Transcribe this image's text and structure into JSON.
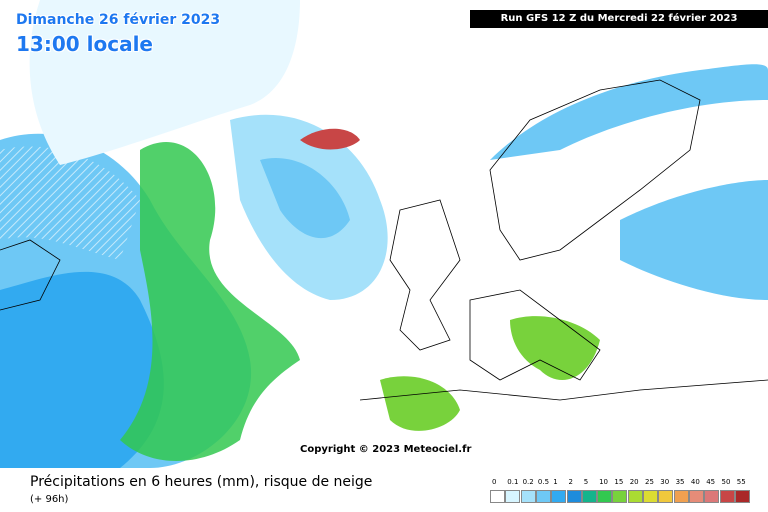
{
  "header": {
    "date": "Dimanche 26 février 2023",
    "time": "13:00 locale",
    "run": "Run GFS 12 Z du Mercredi 22 février 2023"
  },
  "map": {
    "copyright": "Copyright © 2023 Meteociel.fr"
  },
  "footer": {
    "caption": "Précipitations en 6 heures (mm), risque de neige",
    "range": "(+ 96h)"
  },
  "legend": {
    "items": [
      {
        "label": "0",
        "color": "#ffffff"
      },
      {
        "label": "0.1",
        "color": "#d7f5ff"
      },
      {
        "label": "0.2",
        "color": "#a5e1fa"
      },
      {
        "label": "0.5",
        "color": "#6ec8f5"
      },
      {
        "label": "1",
        "color": "#32aaf0"
      },
      {
        "label": "2",
        "color": "#1e8cdc"
      },
      {
        "label": "5",
        "color": "#14b48c"
      },
      {
        "label": "10",
        "color": "#32c850"
      },
      {
        "label": "15",
        "color": "#78d23c"
      },
      {
        "label": "20",
        "color": "#aadc32"
      },
      {
        "label": "25",
        "color": "#dcdc32"
      },
      {
        "label": "30",
        "color": "#f0c83c"
      },
      {
        "label": "35",
        "color": "#f0a050"
      },
      {
        "label": "40",
        "color": "#e68c78"
      },
      {
        "label": "45",
        "color": "#dc7878"
      },
      {
        "label": "50",
        "color": "#c84646"
      },
      {
        "label": "55",
        "color": "#aa2828"
      }
    ]
  }
}
